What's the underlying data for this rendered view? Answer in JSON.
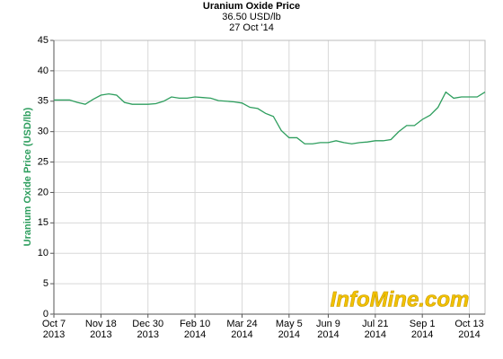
{
  "chart_data": {
    "type": "line",
    "title": "Uranium Oxide Price",
    "subtitle": "36.50 USD/lb",
    "date_label": "27 Oct '14",
    "y_label": "Uranium Oxide Price (USD/lb)",
    "watermark": "InfoMine.com",
    "color": "#2e9e5e",
    "label_color": "#2e9e5e",
    "grid": true,
    "x": [
      "2013-10-07",
      "2013-10-14",
      "2013-10-21",
      "2013-10-28",
      "2013-11-04",
      "2013-11-11",
      "2013-11-18",
      "2013-11-25",
      "2013-12-02",
      "2013-12-09",
      "2013-12-16",
      "2013-12-23",
      "2013-12-30",
      "2014-01-06",
      "2014-01-13",
      "2014-01-20",
      "2014-01-27",
      "2014-02-03",
      "2014-02-10",
      "2014-02-17",
      "2014-02-24",
      "2014-03-03",
      "2014-03-10",
      "2014-03-17",
      "2014-03-24",
      "2014-03-31",
      "2014-04-07",
      "2014-04-14",
      "2014-04-21",
      "2014-04-28",
      "2014-05-05",
      "2014-05-12",
      "2014-05-19",
      "2014-05-26",
      "2014-06-02",
      "2014-06-09",
      "2014-06-16",
      "2014-06-23",
      "2014-06-30",
      "2014-07-07",
      "2014-07-14",
      "2014-07-21",
      "2014-07-28",
      "2014-08-04",
      "2014-08-11",
      "2014-08-18",
      "2014-08-25",
      "2014-09-01",
      "2014-09-08",
      "2014-09-15",
      "2014-09-22",
      "2014-09-29",
      "2014-10-06",
      "2014-10-13",
      "2014-10-20",
      "2014-10-27"
    ],
    "values": [
      35.2,
      35.2,
      35.2,
      34.8,
      34.5,
      35.3,
      36.0,
      36.2,
      36.0,
      34.8,
      34.5,
      34.5,
      34.5,
      34.6,
      35.0,
      35.7,
      35.5,
      35.5,
      35.7,
      35.6,
      35.5,
      35.1,
      35.0,
      34.9,
      34.7,
      34.0,
      33.8,
      33.0,
      32.5,
      30.2,
      29.0,
      29.0,
      28.0,
      28.0,
      28.2,
      28.2,
      28.5,
      28.2,
      28.0,
      28.2,
      28.3,
      28.5,
      28.5,
      28.7,
      30.0,
      31.0,
      31.0,
      32.0,
      32.7,
      34.0,
      36.5,
      35.5,
      35.7,
      35.7,
      35.7,
      36.5
    ],
    "xlim": [
      "2013-10-07",
      "2014-10-27"
    ],
    "xticks": [
      {
        "value": "2013-10-07",
        "label": "Oct 7\n2013"
      },
      {
        "value": "2013-11-18",
        "label": "Nov 18\n2013"
      },
      {
        "value": "2013-12-30",
        "label": "Dec 30\n2013"
      },
      {
        "value": "2014-02-10",
        "label": "Feb 10\n2014"
      },
      {
        "value": "2014-03-24",
        "label": "Mar 24\n2014"
      },
      {
        "value": "2014-05-05",
        "label": "May 5\n2014"
      },
      {
        "value": "2014-06-09",
        "label": "Jun 9\n2014"
      },
      {
        "value": "2014-07-21",
        "label": "Jul 21\n2014"
      },
      {
        "value": "2014-09-01",
        "label": "Sep 1\n2014"
      },
      {
        "value": "2014-10-13",
        "label": "Oct 13\n2014"
      }
    ],
    "ylim": [
      0,
      45
    ],
    "yticks": [
      0,
      5,
      10,
      15,
      20,
      25,
      30,
      35,
      40,
      45
    ]
  }
}
